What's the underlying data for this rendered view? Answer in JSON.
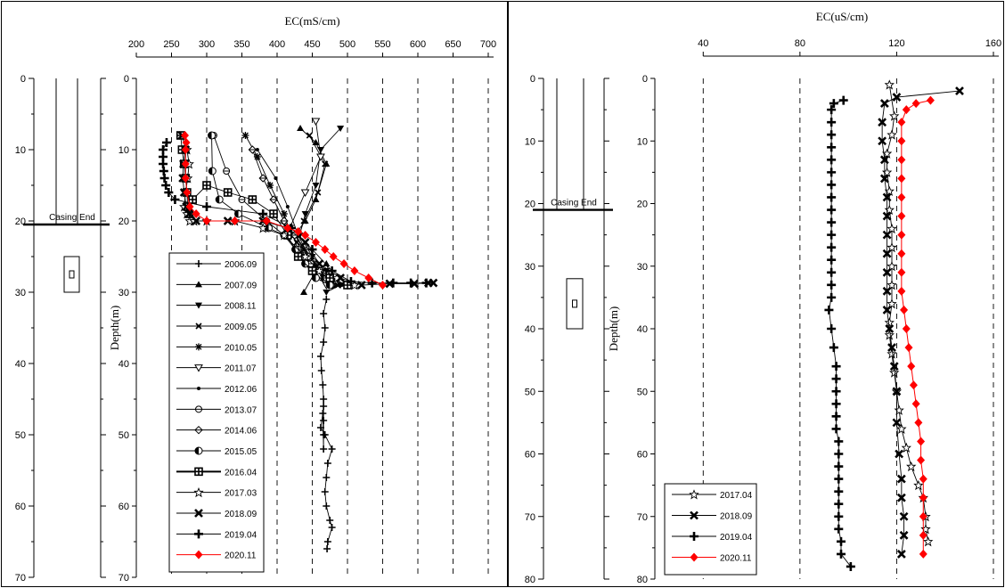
{
  "chart_data": [
    {
      "type": "scatter",
      "panel": "left",
      "xlabel": "EC(mS/cm)",
      "ylabel": "Depth(m)",
      "xlim": [
        200,
        700
      ],
      "ylim": [
        70,
        0
      ],
      "xticks": [
        200,
        250,
        300,
        350,
        400,
        450,
        500,
        550,
        600,
        650,
        700
      ],
      "yticks": [
        0,
        10,
        20,
        30,
        40,
        50,
        60,
        70
      ],
      "grid": "vertical dashed",
      "legend": "bottom-left",
      "casing_label": "Casing End",
      "casing_depth": 20.5,
      "screen_depth": [
        25,
        30
      ],
      "well_yticks": [
        0,
        10,
        20,
        30,
        40,
        50,
        60,
        70
      ],
      "series": [
        {
          "name": "2006.09",
          "marker": "plus",
          "color": "#000000",
          "x": [
            470,
            466,
            468,
            466,
            462,
            463,
            465,
            466,
            466,
            466,
            466,
            466,
            465,
            462,
            468,
            478,
            472,
            470,
            468,
            470,
            475,
            478,
            472,
            471
          ],
          "y": [
            31,
            33,
            35,
            37,
            39,
            41,
            43,
            45,
            46,
            48,
            50,
            52,
            47,
            49,
            50,
            52,
            54,
            56,
            58,
            60,
            62,
            63,
            65,
            66
          ]
        },
        {
          "name": "2007.09",
          "marker": "triangle-up",
          "color": "#000000",
          "x": [
            433,
            455,
            470,
            455,
            440,
            425,
            448,
            470,
            480,
            470,
            455,
            438
          ],
          "y": [
            7,
            9,
            12,
            17,
            20,
            22,
            25,
            28,
            29,
            26,
            27,
            30
          ]
        },
        {
          "name": "2008.11",
          "marker": "triangle-down",
          "color": "#000000",
          "x": [
            490,
            462,
            455,
            440,
            432,
            450,
            470,
            490,
            470
          ],
          "y": [
            7,
            10,
            15,
            19,
            22,
            25,
            27,
            29,
            30
          ]
        },
        {
          "name": "2009.05",
          "marker": "x",
          "color": "#000000",
          "x": [
            446,
            468,
            458,
            438,
            428,
            446,
            468,
            486
          ],
          "y": [
            8,
            12,
            16,
            20,
            23,
            26,
            28,
            29
          ]
        },
        {
          "name": "2010.05",
          "marker": "star",
          "color": "#000000",
          "x": [
            355,
            372,
            390,
            410,
            420,
            438,
            452,
            465,
            480
          ],
          "y": [
            8,
            11,
            15,
            19,
            22,
            24,
            26,
            28,
            29
          ]
        },
        {
          "name": "2011.07",
          "marker": "triangle-down-open",
          "color": "#000000",
          "x": [
            455,
            462,
            440,
            418,
            430,
            452,
            470
          ],
          "y": [
            6,
            11,
            16,
            21,
            24,
            27,
            29
          ]
        },
        {
          "name": "2012.06",
          "marker": "dot",
          "color": "#000000",
          "x": [
            372,
            398,
            415,
            430,
            445,
            462,
            478,
            492
          ],
          "y": [
            10,
            14,
            18,
            22,
            25,
            27,
            28,
            29
          ]
        },
        {
          "name": "2013.07",
          "marker": "circle-half",
          "color": "#000000",
          "x": [
            310,
            328,
            350,
            385,
            410,
            430,
            448,
            470
          ],
          "y": [
            8,
            13,
            17,
            20,
            22,
            24,
            26,
            28
          ]
        },
        {
          "name": "2014.06",
          "marker": "diamond-open",
          "color": "#000000",
          "x": [
            365,
            380,
            395,
            410,
            425,
            445,
            462,
            478
          ],
          "y": [
            10,
            14,
            17,
            20,
            22,
            25,
            27,
            29
          ]
        },
        {
          "name": "2015.05",
          "marker": "circle-filled-half",
          "color": "#000000",
          "x": [
            307,
            308,
            318,
            345,
            388,
            410,
            426,
            440,
            455,
            475
          ],
          "y": [
            8,
            13,
            17,
            19,
            21,
            22,
            24,
            26,
            28,
            29
          ]
        },
        {
          "name": "2016.04",
          "marker": "square-plus",
          "color": "#000000",
          "x": [
            263,
            265,
            268,
            270,
            272,
            273,
            275,
            280,
            300,
            330,
            365,
            395,
            415,
            430,
            450,
            475,
            500
          ],
          "y": [
            8,
            10,
            12,
            14,
            16,
            18,
            19,
            17,
            15,
            16,
            17,
            19,
            22,
            25,
            27,
            28,
            29
          ]
        },
        {
          "name": "2017.03",
          "marker": "star-open",
          "color": "#000000",
          "x": [
            272,
            275,
            273,
            270,
            268,
            272,
            276,
            282,
            300,
            340,
            380,
            410,
            440,
            460,
            485,
            510
          ],
          "y": [
            10,
            12,
            14,
            16,
            18,
            19,
            20,
            20,
            20,
            20,
            21,
            22,
            25,
            27,
            28,
            29
          ]
        },
        {
          "name": "2018.09",
          "marker": "x-bold",
          "color": "#000000",
          "x": [
            265,
            270,
            267,
            266,
            268,
            271,
            275,
            285,
            330,
            380,
            415,
            440,
            460,
            490,
            520,
            560,
            595,
            615,
            622
          ],
          "y": [
            8,
            10,
            12,
            14,
            16,
            18,
            19,
            20,
            20,
            20,
            21,
            23,
            26,
            28,
            29,
            28.8,
            28.8,
            28.7,
            28.7
          ]
        },
        {
          "name": "2019.04",
          "marker": "plus-bold",
          "color": "#000000",
          "x": [
            243,
            238,
            238,
            238,
            239,
            240,
            242,
            246,
            255,
            300,
            380,
            420,
            450,
            478,
            505,
            535,
            565,
            590,
            612
          ],
          "y": [
            9,
            10,
            11,
            12,
            13,
            14,
            15,
            16,
            17,
            18,
            19,
            21,
            24,
            27,
            28.5,
            28.7,
            28.7,
            28.7,
            28.7
          ]
        },
        {
          "name": "2020.11",
          "marker": "diamond",
          "color": "#ff0000",
          "x": [
            269,
            271,
            270,
            270,
            270,
            272,
            276,
            285,
            300,
            340,
            385,
            415,
            430,
            440,
            455,
            468,
            480,
            495,
            510,
            530,
            550
          ],
          "y": [
            8,
            9,
            10,
            12,
            14,
            16,
            18,
            19,
            20,
            20,
            20,
            21,
            21.5,
            22,
            23,
            24,
            25,
            26,
            27,
            28,
            29
          ]
        }
      ]
    },
    {
      "type": "scatter",
      "panel": "right",
      "xlabel": "EC(uS/cm)",
      "ylabel": "Depth(m)",
      "xlim": [
        20,
        160
      ],
      "ylim": [
        80,
        0
      ],
      "xticks": [
        40,
        80,
        120,
        160
      ],
      "yticks": [
        0,
        10,
        20,
        30,
        40,
        50,
        60,
        70,
        80
      ],
      "grid": "vertical dashed",
      "legend": "bottom-left",
      "casing_label": "Casing End",
      "casing_depth": 21,
      "screen_depth": [
        32,
        40
      ],
      "well_yticks": [
        0,
        10,
        20,
        30,
        40,
        50,
        60,
        70,
        80
      ],
      "series": [
        {
          "name": "2017.04",
          "marker": "star-open",
          "color": "#000000",
          "x": [
            117,
            119,
            118,
            116,
            116,
            117,
            117,
            118,
            118,
            118,
            118,
            118,
            117,
            117,
            118,
            119,
            120,
            121,
            122,
            124,
            126,
            129,
            131,
            132,
            132,
            133
          ],
          "y": [
            1,
            6,
            9,
            12,
            15,
            18,
            21,
            24,
            27,
            30,
            33,
            36,
            39,
            41,
            44,
            47,
            50,
            53,
            56,
            59,
            62,
            65,
            67,
            70,
            72,
            74
          ]
        },
        {
          "name": "2018.09",
          "marker": "x-bold",
          "color": "#000000",
          "x": [
            146,
            120,
            115,
            114,
            114,
            115,
            115,
            116,
            116,
            116,
            116,
            116,
            116,
            116,
            117,
            118,
            119,
            120,
            120,
            121,
            122,
            122,
            123,
            123,
            122
          ],
          "y": [
            2,
            3,
            4,
            7,
            10,
            13,
            16,
            19,
            22,
            25,
            28,
            31,
            34,
            37,
            40,
            43,
            46,
            50,
            55,
            60,
            64,
            67,
            70,
            73,
            76
          ]
        },
        {
          "name": "2019.04",
          "marker": "plus-bold",
          "color": "#000000",
          "x": [
            98,
            94,
            93,
            93,
            93,
            93,
            93,
            93,
            93,
            93,
            93,
            93,
            93,
            93,
            93,
            93,
            93,
            93,
            92,
            93,
            94,
            95,
            95,
            95,
            95,
            95,
            95,
            96,
            96,
            96,
            96,
            96,
            96,
            96,
            96,
            97,
            97,
            101
          ],
          "y": [
            3.5,
            4,
            5,
            7,
            9,
            11,
            13,
            15,
            17,
            19,
            21,
            23,
            25,
            27,
            29,
            31,
            33,
            35,
            37,
            40,
            43,
            46,
            48,
            50,
            52,
            54,
            56,
            58,
            60,
            62,
            64,
            66,
            68,
            70,
            72,
            74,
            76,
            78
          ]
        },
        {
          "name": "2020.11",
          "marker": "diamond",
          "color": "#ff0000",
          "x": [
            134,
            128,
            124,
            122,
            122,
            122,
            122,
            122,
            122,
            122,
            122,
            122,
            122,
            123,
            124,
            125,
            126,
            127,
            128,
            129,
            130,
            130,
            131,
            131,
            131,
            131,
            131
          ],
          "y": [
            3.5,
            4,
            5,
            7,
            10,
            13,
            16,
            19,
            22,
            25,
            28,
            31,
            34,
            37,
            40,
            43,
            46,
            49,
            52,
            55,
            58,
            61,
            64,
            67,
            70,
            73,
            76
          ]
        }
      ]
    }
  ]
}
